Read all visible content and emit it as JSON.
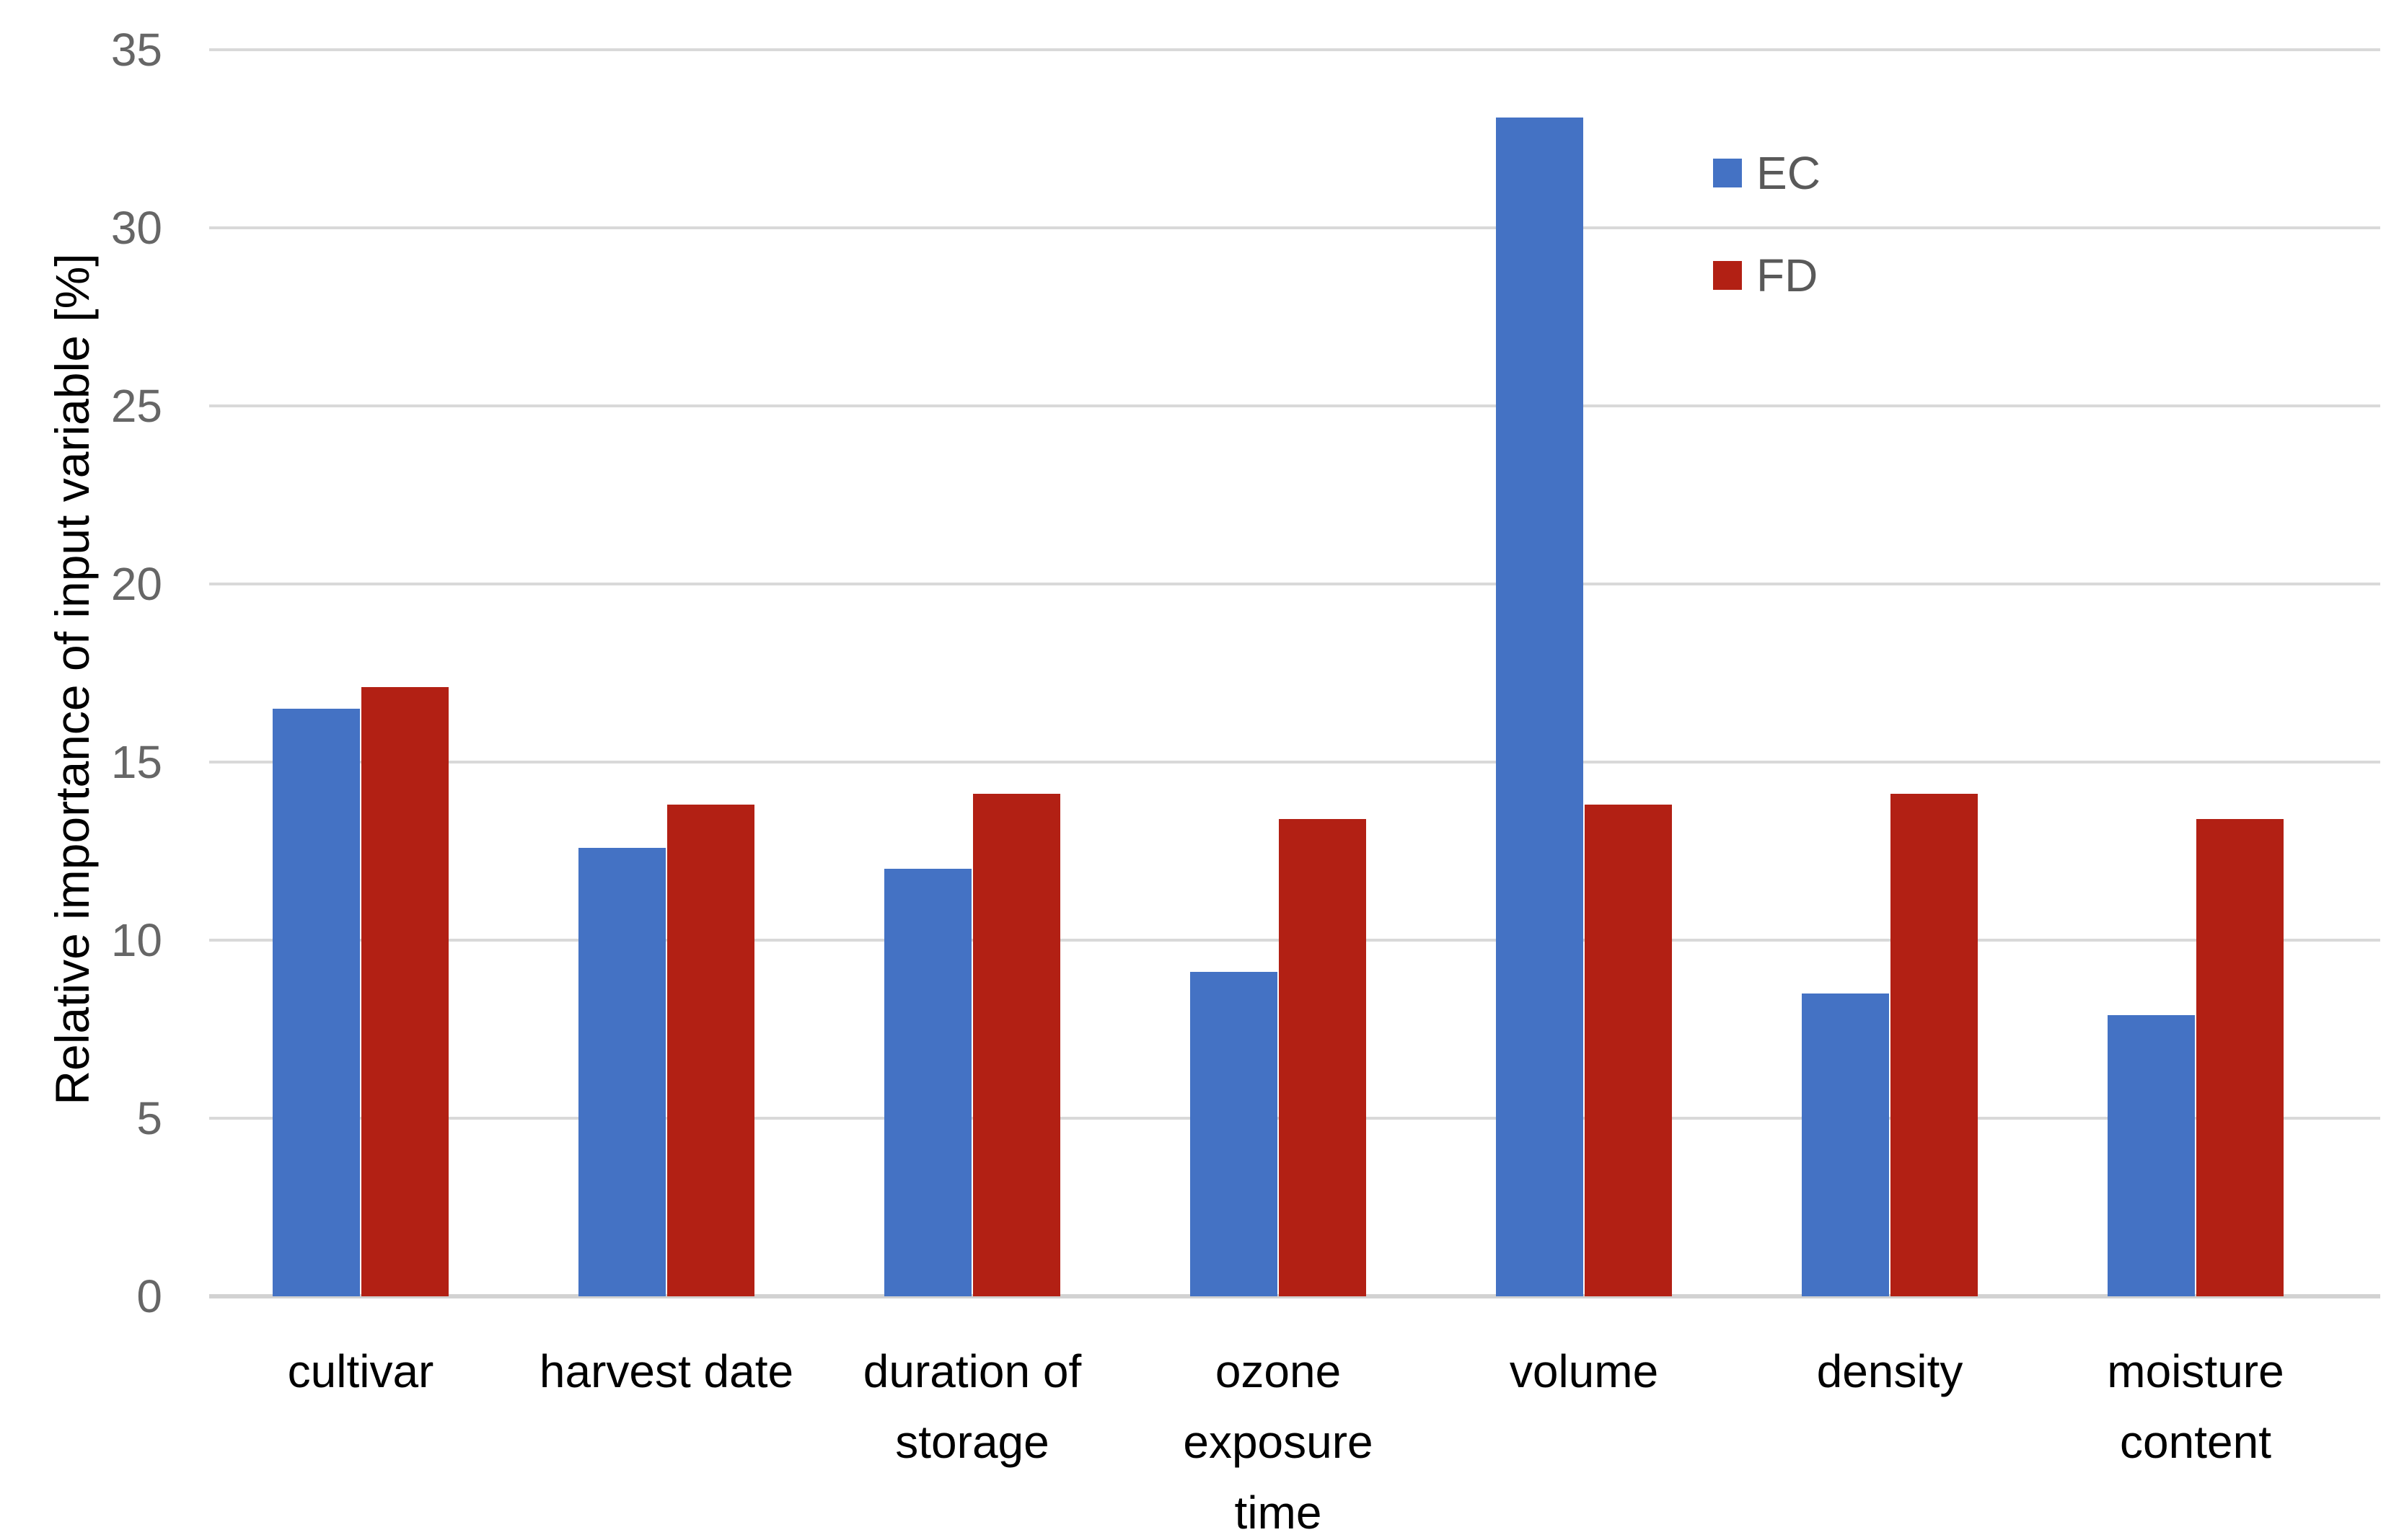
{
  "chart_data": {
    "type": "bar",
    "title": "",
    "xlabel": "",
    "ylabel": "Relative importance of input variable [%]",
    "ylim": [
      0,
      35
    ],
    "ytick_step": 5,
    "yticks": [
      "0",
      "5",
      "10",
      "15",
      "20",
      "25",
      "30",
      "35"
    ],
    "grid": true,
    "legend_position": "top-right",
    "categories": [
      "cultivar",
      "harvest date",
      "duration of storage",
      "ozone exposure time",
      "volume",
      "density",
      "moisture content"
    ],
    "category_lines": [
      [
        "cultivar"
      ],
      [
        "harvest date"
      ],
      [
        "duration of",
        "storage"
      ],
      [
        "ozone",
        "exposure",
        "time"
      ],
      [
        "volume"
      ],
      [
        "density"
      ],
      [
        "moisture",
        "content"
      ]
    ],
    "series": [
      {
        "name": "EC",
        "color": "#4472C4",
        "values": [
          16.5,
          12.6,
          12.0,
          9.1,
          33.1,
          8.5,
          7.9
        ]
      },
      {
        "name": "FD",
        "color": "#B22014",
        "values": [
          17.1,
          13.8,
          14.1,
          13.4,
          13.8,
          14.1,
          13.4
        ]
      }
    ],
    "colors": {
      "gridline": "#D9D9D9",
      "axis_line": "#D2D2D2",
      "tick_text": "#666666",
      "legend_text": "#595959",
      "label_text": "#000000",
      "background": "#FFFFFF"
    }
  }
}
